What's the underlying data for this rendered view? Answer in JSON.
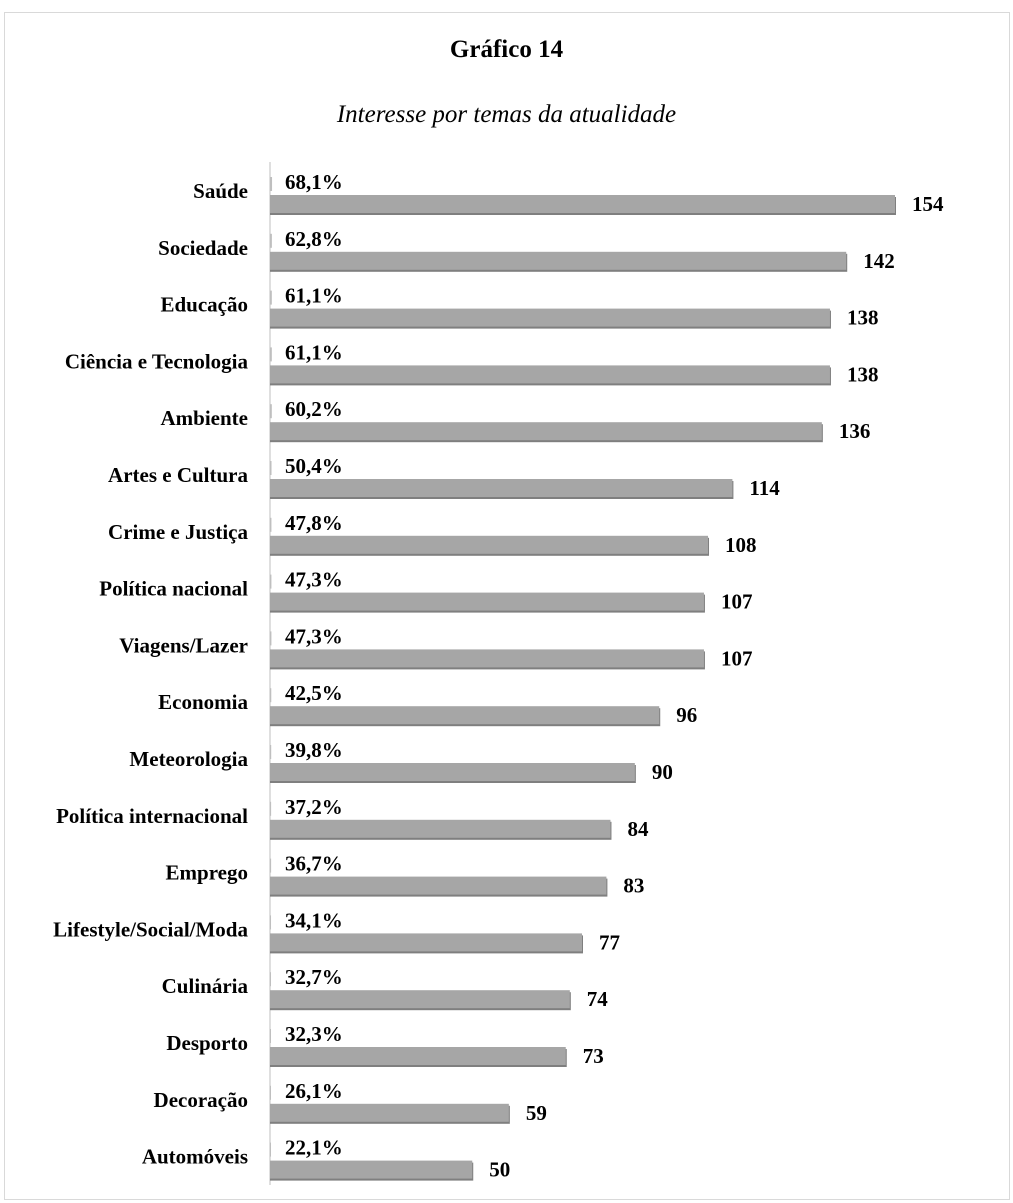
{
  "title": "Gráfico 14",
  "subtitle": "Interesse por temas da atualidade",
  "colors": {
    "bar": "#a6a6a6",
    "bar_shadow": "#7f7f7f",
    "pct_bar": "#bfbfbf",
    "axis": "#bfbfbf"
  },
  "chart_data": {
    "type": "bar",
    "orientation": "horizontal",
    "title": "Gráfico 14",
    "subtitle": "Interesse por temas da atualidade",
    "categories": [
      "Saúde",
      "Sociedade",
      "Educação",
      "Ciência e Tecnologia",
      "Ambiente",
      "Artes e Cultura",
      "Crime e Justiça",
      "Política nacional",
      "Viagens/Lazer",
      "Economia",
      "Meteorologia",
      "Política internacional",
      "Emprego",
      "Lifestyle/Social/Moda",
      "Culinária",
      "Desporto",
      "Decoração",
      "Automóveis"
    ],
    "series": [
      {
        "values": [
          68.1,
          62.8,
          61.1,
          61.1,
          60.2,
          50.4,
          47.8,
          47.3,
          47.3,
          42.5,
          39.8,
          37.2,
          36.7,
          34.1,
          32.7,
          32.3,
          26.1,
          22.1
        ],
        "labels": [
          "68,1%",
          "62,8%",
          "61,1%",
          "61,1%",
          "60,2%",
          "50,4%",
          "47,8%",
          "47,3%",
          "47,3%",
          "42,5%",
          "39,8%",
          "37,2%",
          "36,7%",
          "34,1%",
          "32,7%",
          "32,3%",
          "26,1%",
          "22,1%"
        ]
      },
      {
        "values": [
          154,
          142,
          138,
          138,
          136,
          114,
          108,
          107,
          107,
          96,
          90,
          84,
          83,
          77,
          74,
          73,
          59,
          50
        ],
        "labels": [
          "154",
          "142",
          "138",
          "138",
          "136",
          "114",
          "108",
          "107",
          "107",
          "96",
          "90",
          "84",
          "83",
          "77",
          "74",
          "73",
          "59",
          "50"
        ]
      }
    ],
    "xlim": [
      0,
      154
    ],
    "grid": false,
    "legend": "none"
  }
}
